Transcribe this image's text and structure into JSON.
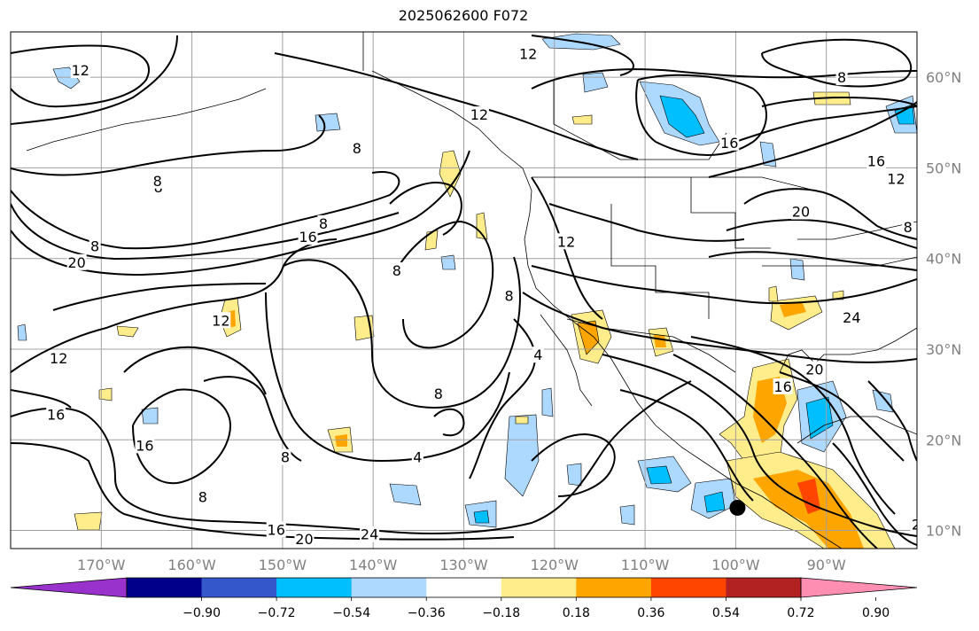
{
  "title": "2025062600 F072",
  "map": {
    "projection": "equirectangular",
    "extent": {
      "lon": [
        -180,
        -80
      ],
      "lat": [
        8,
        65
      ]
    },
    "gridlines": true,
    "lon_ticks": [
      {
        "value": -170,
        "label": "170°W"
      },
      {
        "value": -160,
        "label": "160°W"
      },
      {
        "value": -150,
        "label": "150°W"
      },
      {
        "value": -140,
        "label": "140°W"
      },
      {
        "value": -130,
        "label": "130°W"
      },
      {
        "value": -120,
        "label": "120°W"
      },
      {
        "value": -110,
        "label": "110°W"
      },
      {
        "value": -100,
        "label": "100°W"
      },
      {
        "value": -90,
        "label": "90°W"
      }
    ],
    "lat_ticks": [
      {
        "value": 10,
        "label": "10°N"
      },
      {
        "value": 20,
        "label": "20°N"
      },
      {
        "value": 30,
        "label": "30°N"
      },
      {
        "value": 40,
        "label": "40°N"
      },
      {
        "value": 50,
        "label": "50°N"
      },
      {
        "value": 60,
        "label": "60°N"
      }
    ],
    "marker": {
      "lon": -99.8,
      "lat": 12.5,
      "color": "#000000"
    },
    "contour_labels": [
      {
        "text": "12",
        "lon": -172.3,
        "lat": 60.7
      },
      {
        "text": "12",
        "lon": -128.3,
        "lat": 55.8
      },
      {
        "text": "12",
        "lon": -122.9,
        "lat": 62.5
      },
      {
        "text": "8",
        "lon": -88.3,
        "lat": 59.9
      },
      {
        "text": "8",
        "lon": -141.8,
        "lat": 52.1
      },
      {
        "text": "8",
        "lon": -163.7,
        "lat": 47.8
      },
      {
        "text": "8",
        "lon": -163.8,
        "lat": 48.5
      },
      {
        "text": "16",
        "lon": -100.7,
        "lat": 52.7
      },
      {
        "text": "16",
        "lon": -84.5,
        "lat": 50.7
      },
      {
        "text": "12",
        "lon": -82.3,
        "lat": 48.7
      },
      {
        "text": "8",
        "lon": -145.5,
        "lat": 43.8
      },
      {
        "text": "8",
        "lon": -170.7,
        "lat": 41.3
      },
      {
        "text": "20",
        "lon": -172.7,
        "lat": 39.5
      },
      {
        "text": "16",
        "lon": -147.2,
        "lat": 42.3
      },
      {
        "text": "20",
        "lon": -92.8,
        "lat": 45.1
      },
      {
        "text": "8",
        "lon": -81.0,
        "lat": 43.4
      },
      {
        "text": "12",
        "lon": -118.7,
        "lat": 41.8
      },
      {
        "text": "8",
        "lon": -137.4,
        "lat": 38.6
      },
      {
        "text": "8",
        "lon": -125.0,
        "lat": 35.8
      },
      {
        "text": "24",
        "lon": -87.2,
        "lat": 33.4
      },
      {
        "text": "12",
        "lon": -156.8,
        "lat": 33.1
      },
      {
        "text": "12",
        "lon": -174.7,
        "lat": 28.9
      },
      {
        "text": "4",
        "lon": -121.8,
        "lat": 29.3
      },
      {
        "text": "20",
        "lon": -91.3,
        "lat": 27.7
      },
      {
        "text": "16",
        "lon": -175.0,
        "lat": 22.7
      },
      {
        "text": "16",
        "lon": -94.8,
        "lat": 25.8
      },
      {
        "text": "8",
        "lon": -132.8,
        "lat": 25.0
      },
      {
        "text": "16",
        "lon": -165.2,
        "lat": 19.3
      },
      {
        "text": "4",
        "lon": -135.1,
        "lat": 18.0
      },
      {
        "text": "8",
        "lon": -149.7,
        "lat": 18.0
      },
      {
        "text": "8",
        "lon": -158.8,
        "lat": 13.6
      },
      {
        "text": "16",
        "lon": -150.7,
        "lat": 10.0
      },
      {
        "text": "20",
        "lon": -147.6,
        "lat": 9.0
      },
      {
        "text": "24",
        "lon": -140.4,
        "lat": 9.5
      },
      {
        "text": "2",
        "lon": -80.1,
        "lat": 10.6
      }
    ]
  },
  "colorbar": {
    "ticks": [
      "−0.90",
      "−0.72",
      "−0.54",
      "−0.36",
      "−0.18",
      "0.18",
      "0.36",
      "0.54",
      "0.72",
      "0.90"
    ],
    "colors": [
      "#9932cc",
      "#00008b",
      "#3557cc",
      "#00bfff",
      "#add8ff",
      "#ffffff",
      "#ffec8b",
      "#ffa500",
      "#ff4500",
      "#b22222",
      "#ff8fb2"
    ]
  },
  "colors": {
    "contour_line": "#000000",
    "gridline": "#a0a0a0",
    "tick_label": "#808080"
  }
}
